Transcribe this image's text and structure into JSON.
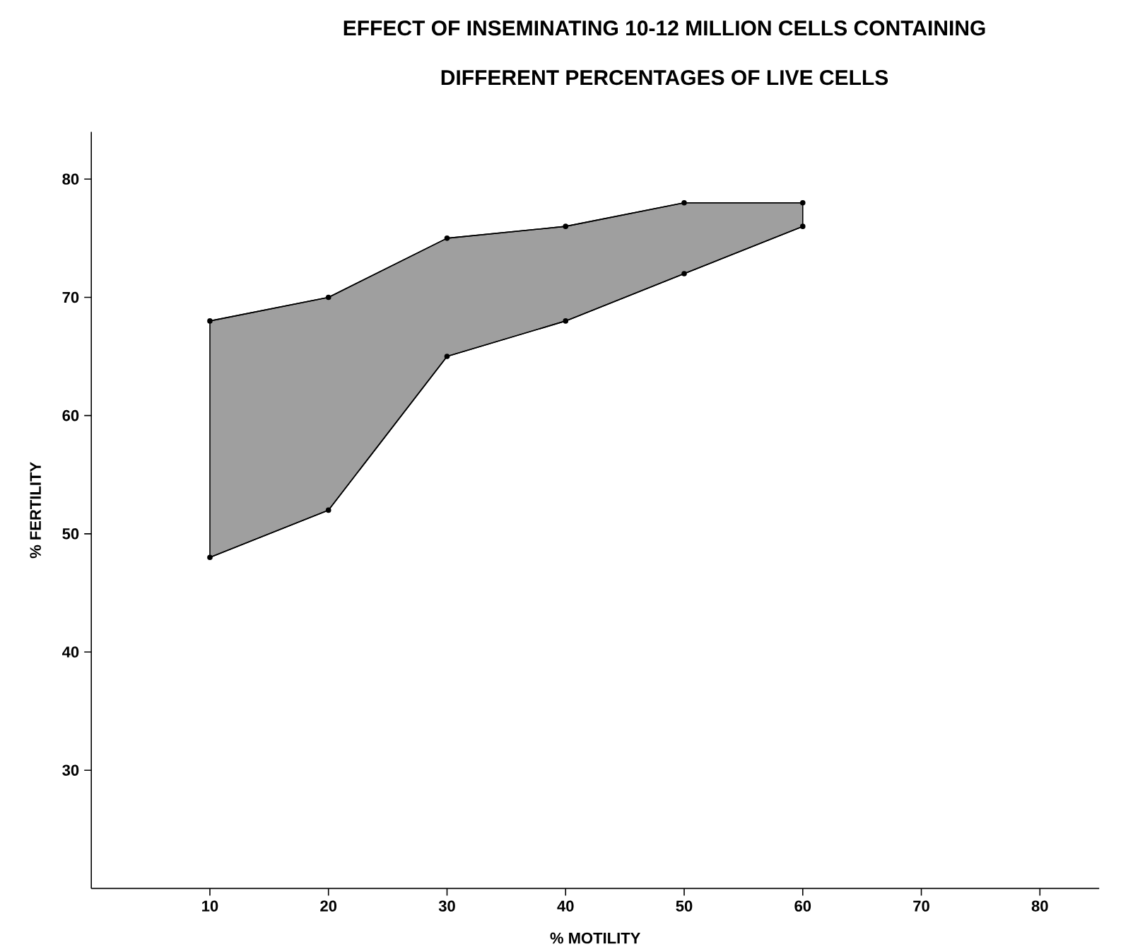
{
  "chart_data": {
    "type": "line",
    "title": "EFFECT OF INSEMINATING 10-12 MILLION CELLS CONTAINING",
    "subtitle": "DIFFERENT PERCENTAGES OF LIVE CELLS",
    "xlabel": "% MOTILITY",
    "ylabel": "% FERTILITY",
    "x": [
      10,
      20,
      30,
      40,
      50,
      60
    ],
    "series": [
      {
        "color": "#000000",
        "values": [
          68,
          70,
          75,
          76,
          78,
          78
        ],
        "lower": [
          48,
          52,
          65,
          68,
          72,
          76
        ],
        "upper": [
          68,
          70,
          75,
          76,
          78,
          78
        ]
      },
      {
        "color": "#000000",
        "values": [
          48,
          52,
          65,
          68,
          72,
          76
        ]
      }
    ],
    "xlim": [
      0,
      85
    ],
    "ylim": [
      20,
      84
    ],
    "xticks": [
      10,
      20,
      30,
      40,
      50,
      60,
      70,
      80
    ],
    "yticks": [
      30,
      40,
      50,
      60,
      70,
      80
    ],
    "grid": false,
    "marker": "circle"
  }
}
